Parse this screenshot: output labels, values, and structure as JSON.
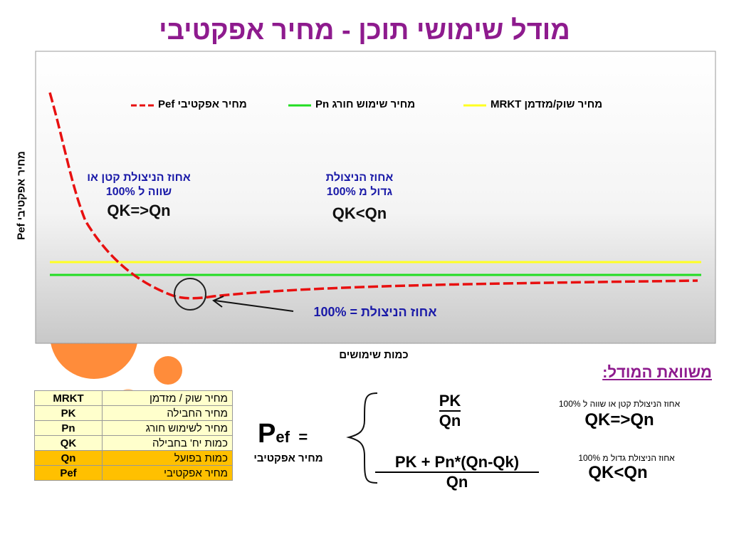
{
  "header": {
    "title": "מודל שימושי תוכן - מחיר אפקטיבי"
  },
  "chart": {
    "legend": [
      "מחיר אפקטיבי Pef",
      "מחיר שימוש חורג Pn",
      "מחיר שוק/מזדמן MRKT"
    ],
    "y_label": "מחיר אפקטיבי Pef",
    "x_label": "כמות שימושים",
    "annotations": {
      "left": [
        "אחוז הניצולת קטן או",
        "שווה ל 100%",
        "QK=>Qn"
      ],
      "right": [
        "אחוז הניצולת",
        "גדול מ 100%",
        "QK<Qn"
      ],
      "arrow": "אחוז הניצולת = 100%"
    }
  },
  "model": {
    "heading": "משוואת המודל:",
    "lhs": {
      "symbol": "P",
      "subscript": "ef",
      "equals": "=",
      "caption": "מחיר אפקטיבי"
    },
    "case1": {
      "numerator": "PK",
      "denominator": "Qn",
      "condition": "אחוז הניצולת קטן או שווה ל 100%",
      "relation": "QK=>Qn"
    },
    "case2": {
      "numerator": "PK + Pn*(Qn-Qk)",
      "denominator": "Qn",
      "condition": "אחוז הניצולת גדול מ 100%",
      "relation": "QK<Qn"
    }
  },
  "table": {
    "rows": [
      [
        "MRKT",
        "מחיר שוק / מזדמן"
      ],
      [
        "PK",
        "מחיר החבילה"
      ],
      [
        "Pn",
        "מחיר לשימוש חורג"
      ],
      [
        "QK",
        "כמות יח' בחבילה"
      ],
      [
        "Qn",
        "כמות בפועל"
      ],
      [
        "Pef",
        "מחיר אפקטיבי"
      ]
    ]
  }
}
